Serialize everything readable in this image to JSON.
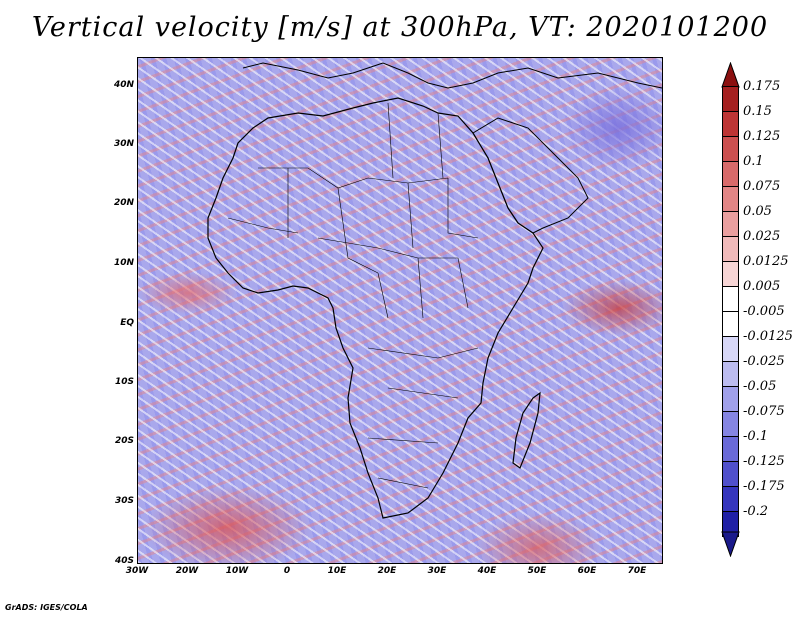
{
  "title": "Vertical velocity [m/s] at 300hPa, VT: 2020101200",
  "credit": "GrADS: IGES/COLA",
  "map": {
    "lat_labels": [
      "40N",
      "30N",
      "20N",
      "10N",
      "EQ",
      "10S",
      "20S",
      "30S",
      "40S"
    ],
    "lon_labels": [
      "30W",
      "20W",
      "10W",
      "0",
      "10E",
      "20E",
      "30E",
      "40E",
      "50E",
      "60E",
      "70E"
    ],
    "lat_range": [
      -40,
      45
    ],
    "lon_range": [
      -30,
      75
    ]
  },
  "colorbar": {
    "labels": [
      "0.175",
      "0.15",
      "0.125",
      "0.1",
      "0.075",
      "0.05",
      "0.025",
      "0.0125",
      "0.005",
      "-0.005",
      "-0.0125",
      "-0.025",
      "-0.05",
      "-0.075",
      "-0.1",
      "-0.125",
      "-0.175",
      "-0.2"
    ],
    "colors": [
      "#a52020",
      "#bd3535",
      "#cc5050",
      "#d86a6a",
      "#e28585",
      "#ea9f9f",
      "#f1baba",
      "#f7d5d5",
      "#ffffff",
      "#ffffff",
      "#d7d7f7",
      "#bcbcf0",
      "#a0a0ea",
      "#8585e2",
      "#6a6ad8",
      "#5050cc",
      "#3535bd",
      "#2020a5"
    ],
    "top_arrow_color": "#8b1010",
    "bottom_arrow_color": "#1a1a8b"
  }
}
